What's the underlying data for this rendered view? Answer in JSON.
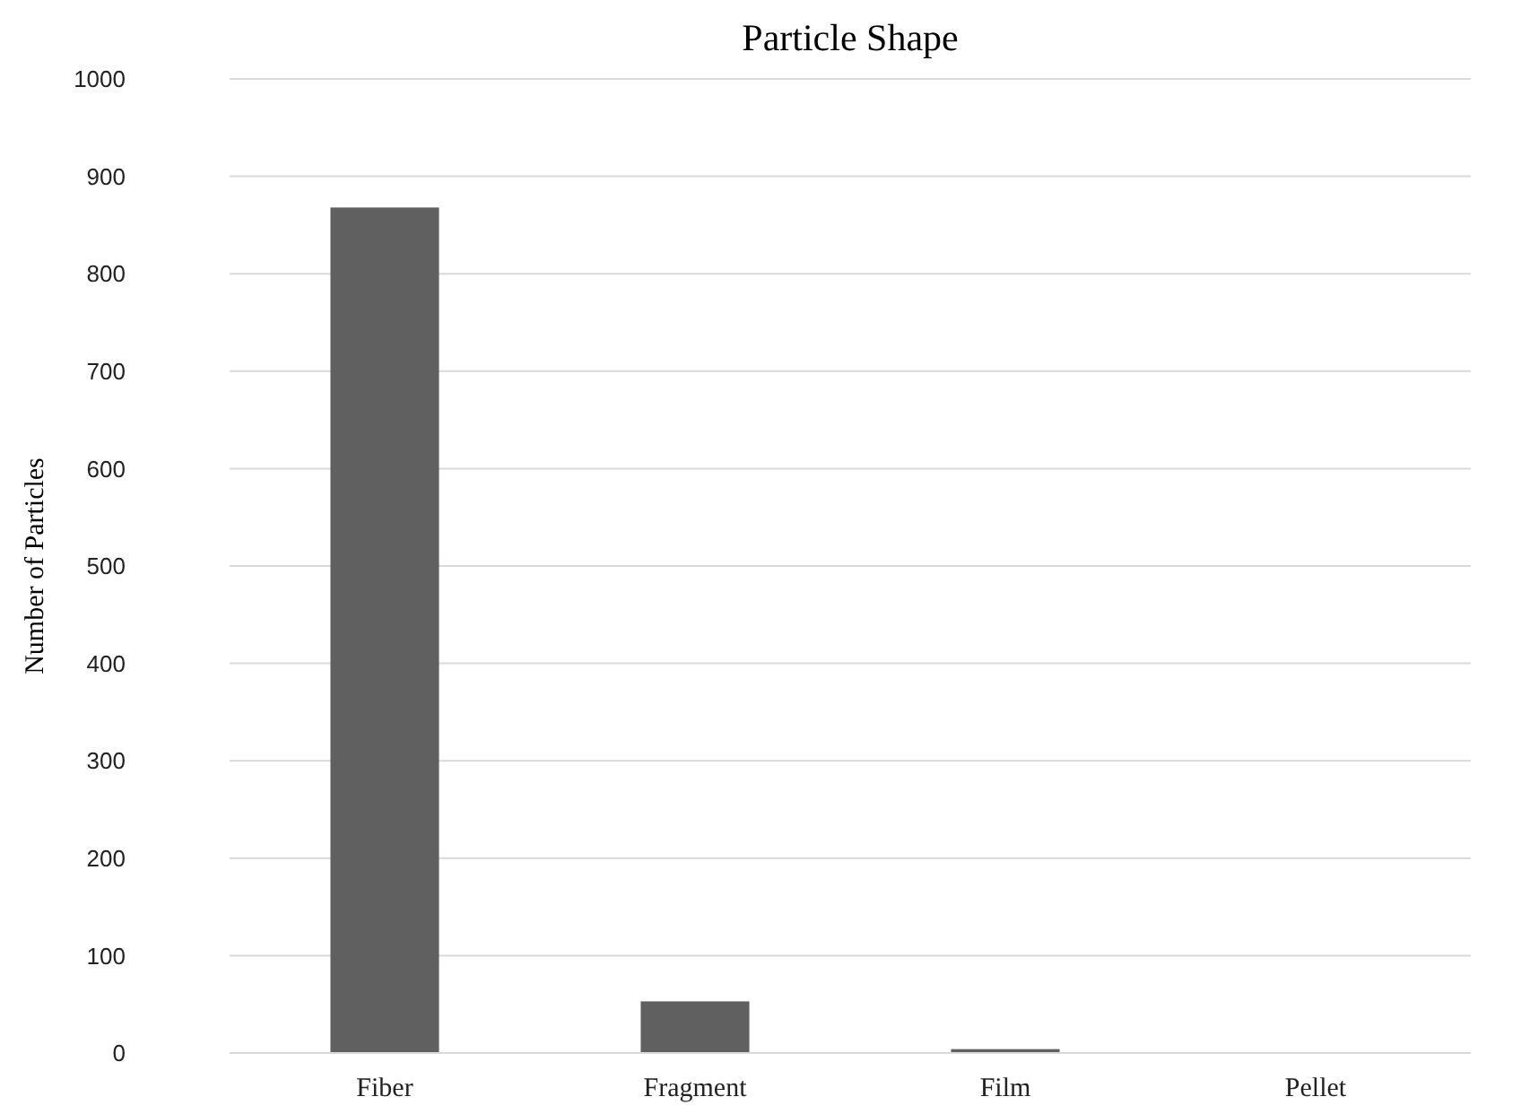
{
  "chart_data": {
    "type": "bar",
    "title": "Particle Shape",
    "ylabel": "Number of Particles",
    "categories": [
      "Fiber",
      "Fragment",
      "Film",
      "Pellet"
    ],
    "values": [
      868,
      53,
      4,
      0
    ],
    "color": "#606060",
    "ylim": [
      0,
      1000
    ],
    "yticks": [
      0,
      100,
      200,
      300,
      400,
      500,
      600,
      700,
      800,
      900,
      1000
    ],
    "grid": "y"
  }
}
